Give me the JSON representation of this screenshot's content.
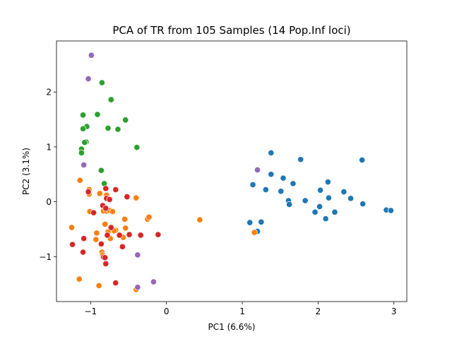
{
  "chart_data": {
    "type": "scatter",
    "title": "PCA of TR from 105 Samples (14 Pop.Inf loci)",
    "xlabel": "PC1 (6.6%)",
    "ylabel": "PC2  (3.1%)",
    "xlim": [
      -1.45,
      3.17
    ],
    "ylim": [
      -1.82,
      2.93
    ],
    "x_ticks": [
      -1,
      0,
      1,
      2,
      3
    ],
    "x_tick_labels": [
      "−1",
      "0",
      "1",
      "2",
      "3"
    ],
    "y_ticks": [
      -1,
      0,
      1,
      2
    ],
    "y_tick_labels": [
      "−1",
      "0",
      "1",
      "2"
    ],
    "grid": false,
    "legend": false,
    "series": [
      {
        "color": "#1f77b4",
        "points": [
          [
            1.38,
            0.89
          ],
          [
            1.77,
            0.77
          ],
          [
            2.58,
            0.76
          ],
          [
            1.38,
            0.5
          ],
          [
            1.54,
            0.43
          ],
          [
            1.14,
            0.31
          ],
          [
            1.67,
            0.33
          ],
          [
            2.13,
            0.36
          ],
          [
            1.31,
            0.22
          ],
          [
            1.51,
            0.19
          ],
          [
            2.03,
            0.21
          ],
          [
            2.34,
            0.18
          ],
          [
            1.61,
            0.02
          ],
          [
            2.14,
            0.07
          ],
          [
            2.43,
            0.06
          ],
          [
            1.62,
            -0.05
          ],
          [
            1.83,
            0.02
          ],
          [
            2.59,
            -0.04
          ],
          [
            2.02,
            -0.09
          ],
          [
            1.1,
            -0.38
          ],
          [
            1.25,
            -0.37
          ],
          [
            1.96,
            -0.19
          ],
          [
            2.22,
            -0.19
          ],
          [
            1.2,
            -0.54
          ],
          [
            2.1,
            -0.31
          ],
          [
            2.9,
            -0.15
          ],
          [
            2.96,
            -0.16
          ]
        ]
      },
      {
        "color": "#ff7f0e",
        "points": [
          [
            -1.14,
            0.39
          ],
          [
            -1.02,
            0.22
          ],
          [
            -1.02,
            0.14
          ],
          [
            -0.88,
            0.15
          ],
          [
            -0.79,
            0.12
          ],
          [
            -0.4,
            0.07
          ],
          [
            -0.83,
            -0.17
          ],
          [
            -0.79,
            -0.17
          ],
          [
            -0.75,
            -0.16
          ],
          [
            -0.71,
            -0.18
          ],
          [
            -1.01,
            -0.18
          ],
          [
            -0.55,
            -0.32
          ],
          [
            -0.25,
            -0.32
          ],
          [
            -0.23,
            -0.28
          ],
          [
            0.44,
            -0.33
          ],
          [
            -0.81,
            -0.41
          ],
          [
            -0.67,
            -0.52
          ],
          [
            -0.54,
            -0.48
          ],
          [
            -0.69,
            -0.53
          ],
          [
            -1.25,
            -0.47
          ],
          [
            -0.92,
            -0.57
          ],
          [
            -0.77,
            -0.55
          ],
          [
            -0.93,
            -0.69
          ],
          [
            -0.74,
            -0.67
          ],
          [
            -0.57,
            -0.65
          ],
          [
            -0.85,
            -0.92
          ],
          [
            -0.84,
            -0.97
          ],
          [
            -1.15,
            -1.41
          ],
          [
            -0.89,
            -1.53
          ],
          [
            -0.4,
            -1.6
          ],
          [
            1.16,
            -0.56
          ]
        ]
      },
      {
        "color": "#2ca02c",
        "points": [
          [
            -0.85,
            2.17
          ],
          [
            -0.73,
            1.86
          ],
          [
            -1.1,
            1.58
          ],
          [
            -0.91,
            1.59
          ],
          [
            -0.54,
            1.49
          ],
          [
            -1.05,
            1.37
          ],
          [
            -1.1,
            1.33
          ],
          [
            -0.77,
            1.34
          ],
          [
            -0.64,
            1.32
          ],
          [
            -1.06,
            1.09
          ],
          [
            -1.08,
            1.08
          ],
          [
            -0.39,
            0.99
          ],
          [
            -1.12,
            0.96
          ],
          [
            -1.12,
            0.89
          ],
          [
            -0.86,
            0.57
          ],
          [
            -0.82,
            0.33
          ]
        ]
      },
      {
        "color": "#d62728",
        "points": [
          [
            -0.8,
            0.24
          ],
          [
            -0.67,
            0.22
          ],
          [
            -0.79,
            0.06
          ],
          [
            -0.75,
            0.04
          ],
          [
            -0.52,
            0.09
          ],
          [
            -1.03,
            0.18
          ],
          [
            -0.84,
            -0.07
          ],
          [
            -0.8,
            -0.12
          ],
          [
            -0.96,
            -0.2
          ],
          [
            -0.78,
            -0.61
          ],
          [
            -0.73,
            -0.47
          ],
          [
            -0.62,
            -0.61
          ],
          [
            -0.49,
            -0.6
          ],
          [
            -0.34,
            -0.61
          ],
          [
            -0.11,
            -0.6
          ],
          [
            -1.09,
            -0.67
          ],
          [
            -1.24,
            -0.78
          ],
          [
            -0.86,
            -0.77
          ],
          [
            -0.58,
            -0.82
          ],
          [
            -1.1,
            -0.92
          ],
          [
            -0.83,
            -1.01
          ],
          [
            -0.81,
            -1.02
          ],
          [
            -0.8,
            -1.13
          ],
          [
            -0.67,
            -1.48
          ]
        ]
      },
      {
        "color": "#9467bd",
        "points": [
          [
            -0.99,
            2.67
          ],
          [
            -1.03,
            2.24
          ],
          [
            -1.09,
            0.67
          ],
          [
            1.2,
            0.58
          ],
          [
            -0.38,
            -0.97
          ],
          [
            -0.17,
            -1.46
          ],
          [
            -0.38,
            -1.56
          ]
        ]
      }
    ]
  }
}
